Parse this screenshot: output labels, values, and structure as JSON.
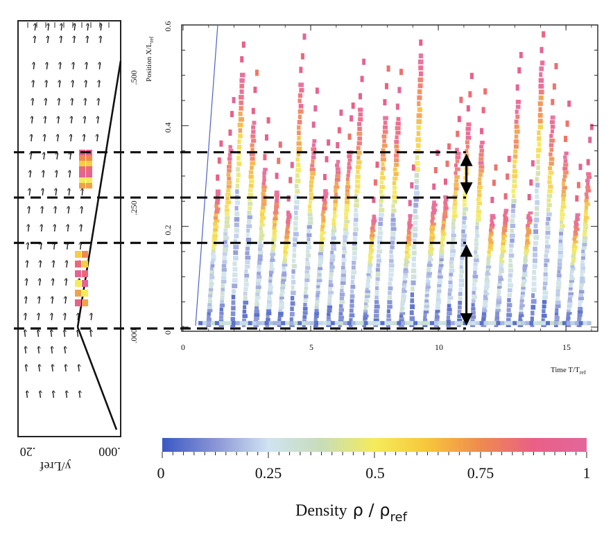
{
  "chart_data": [
    {
      "type": "vector-field",
      "title": "",
      "ylabel": "y/Lref",
      "ytick_labels": [
        ".000",
        ".250",
        ".500"
      ],
      "xtick_labels": [
        ".000",
        ".20"
      ],
      "orientation": "rotated-90"
    },
    {
      "type": "heatmap",
      "title": "",
      "xlabel_main": "Time T/T",
      "xlabel_sub": "ref",
      "ylabel_main": "Position X/L",
      "ylabel_sub": "ref",
      "xlim": [
        0,
        16
      ],
      "ylim": [
        0,
        0.6
      ],
      "xticks": [
        0,
        5,
        10,
        15
      ],
      "yticks": [
        0,
        0.2,
        0.4,
        0.6
      ],
      "xtick_labels": [
        "0",
        "5",
        "10",
        "15"
      ],
      "ytick_labels": [
        "0",
        "0.2",
        "0.4",
        "0.6"
      ],
      "grid": false,
      "dashed_guides_y": [
        0.0,
        0.17,
        0.26,
        0.35
      ],
      "double_arrows": [
        {
          "x": 11.1,
          "y_from": 0.26,
          "y_to": 0.35
        },
        {
          "x": 11.1,
          "y_from": 0.0,
          "y_to": 0.17
        }
      ],
      "streak_count": 32,
      "colormap": [
        "#3a58c4",
        "#8a95d6",
        "#cfe3f2",
        "#c7ddb8",
        "#f4ec5a",
        "#f7c63b",
        "#ef8a4e",
        "#ea5f86",
        "#e2679b"
      ]
    },
    {
      "type": "colorbar",
      "title_main": "Density",
      "title_symbol": "ρ / ρ",
      "title_sub": "ref",
      "range": [
        0,
        1
      ],
      "tick_labels": [
        "0",
        "0.25",
        "0.5",
        "0.75",
        "1"
      ],
      "tick_values": [
        0,
        0.25,
        0.5,
        0.75,
        1
      ]
    }
  ]
}
